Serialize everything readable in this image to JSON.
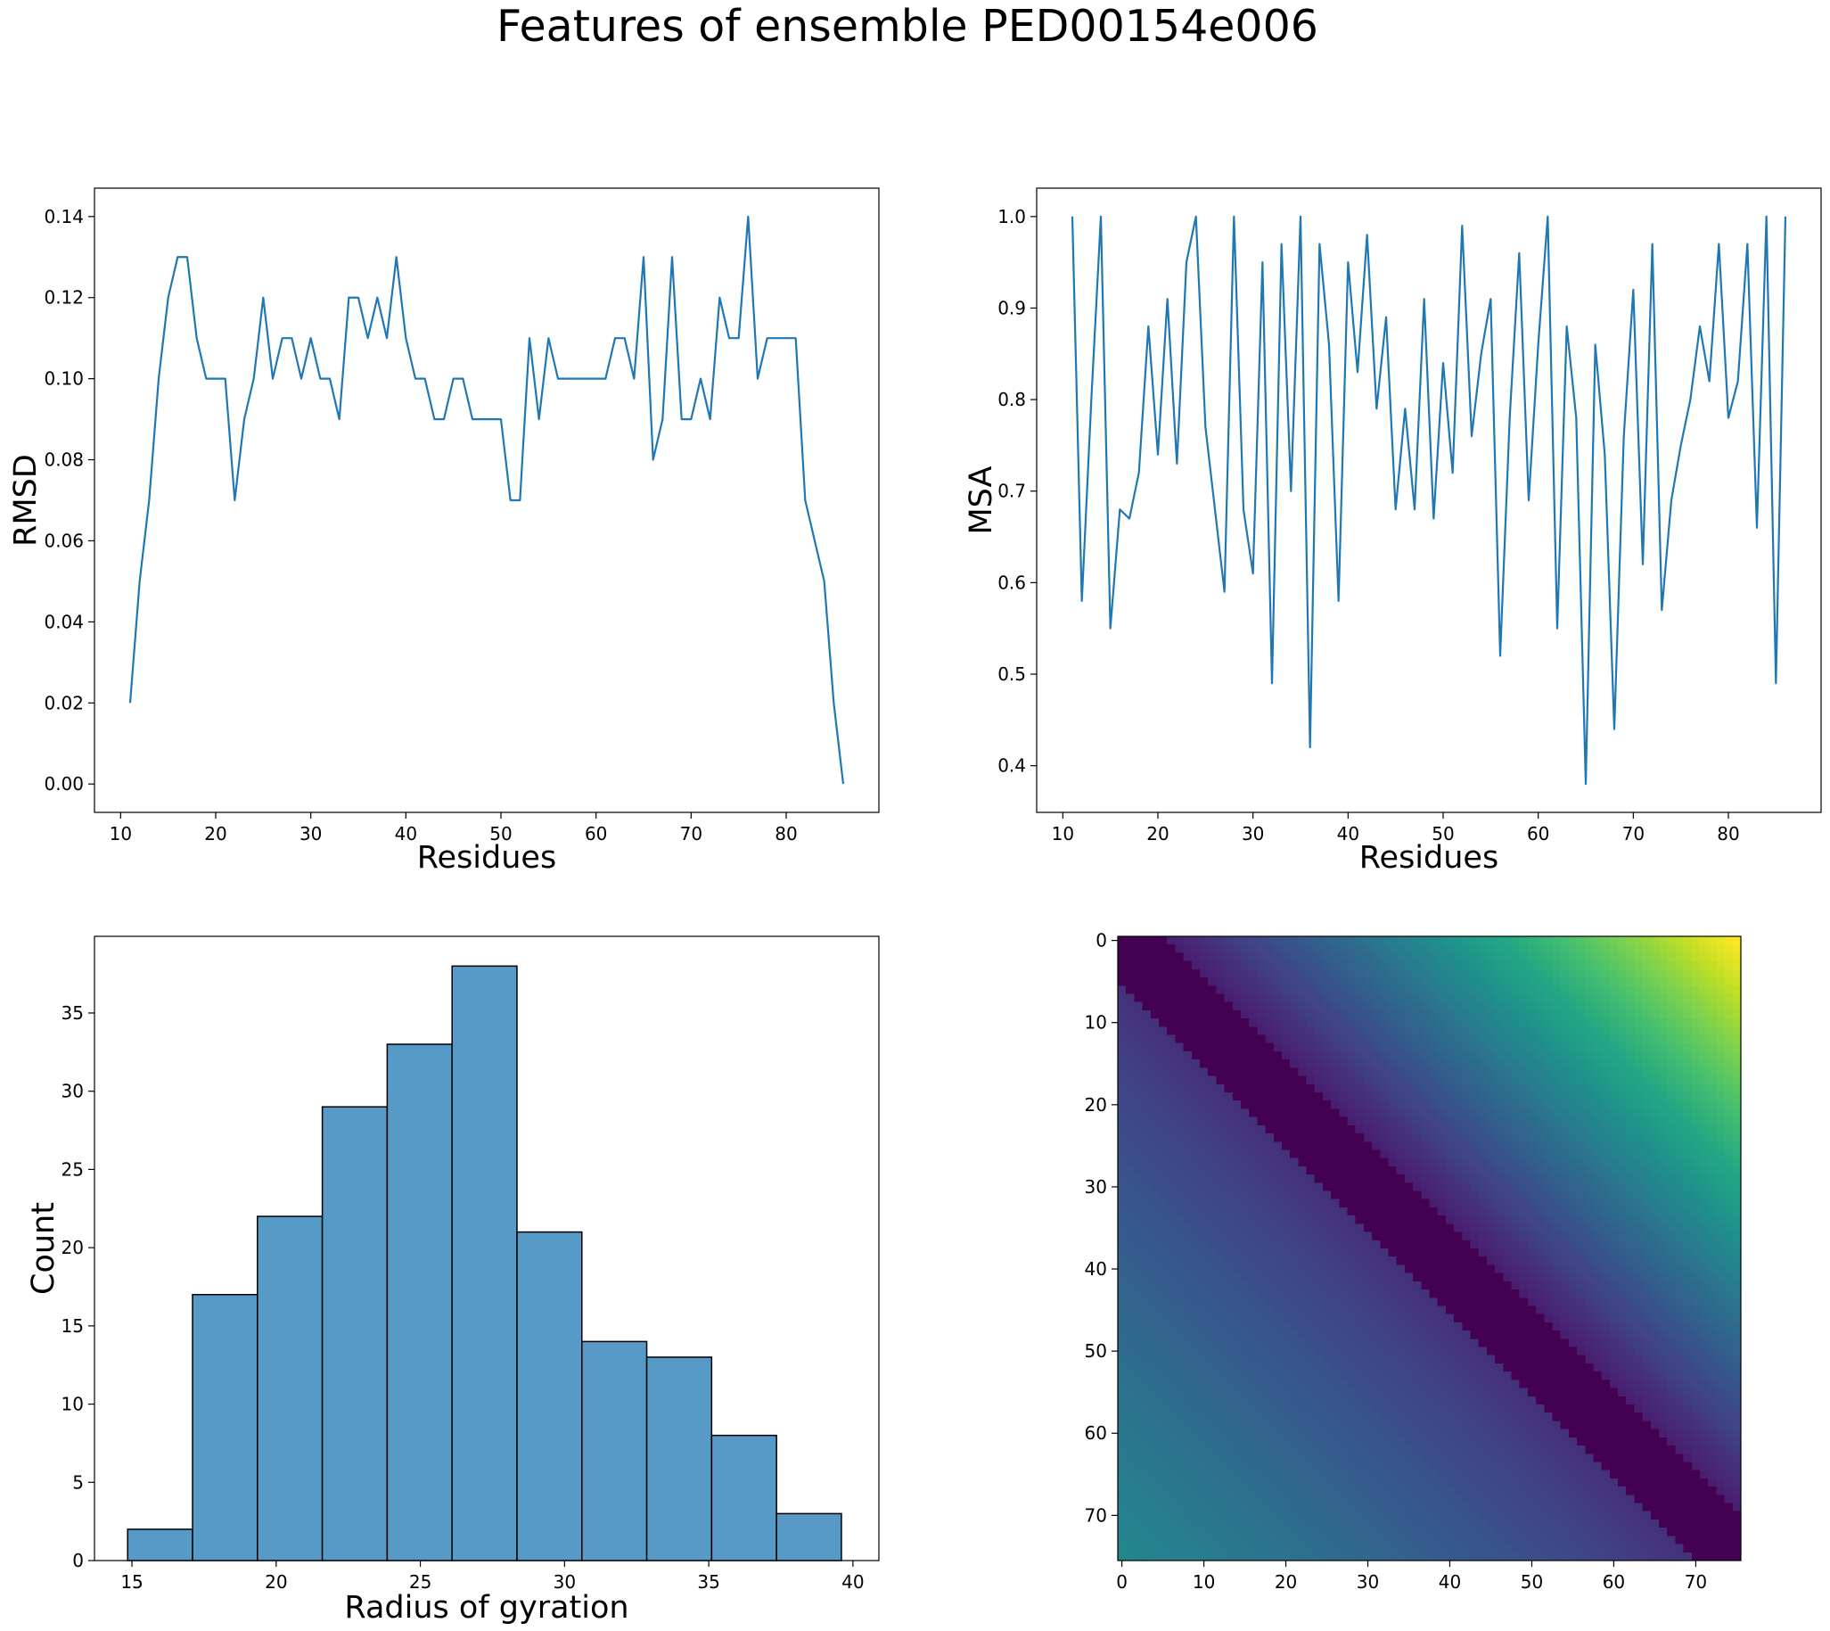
{
  "figure": {
    "title": "Features of ensemble PED00154e006",
    "title_color": "#000000"
  },
  "colors": {
    "line": "#1f77b4",
    "bar_fill": "#5799c7",
    "bar_edge": "#000000",
    "axis": "#000000"
  },
  "chart_data": [
    {
      "type": "line",
      "xlabel": "Residues",
      "ylabel": "RMSD",
      "xlim": [
        7.25,
        89.75
      ],
      "ylim": [
        -0.007,
        0.147
      ],
      "xticks": [
        10,
        20,
        30,
        40,
        50,
        60,
        70,
        80
      ],
      "yticks": [
        0.0,
        0.02,
        0.04,
        0.06,
        0.08,
        0.1,
        0.12,
        0.14
      ],
      "ytick_labels": [
        "0.00",
        "0.02",
        "0.04",
        "0.06",
        "0.08",
        "0.10",
        "0.12",
        "0.14"
      ],
      "grid": false,
      "series": [
        {
          "x": [
            11,
            12,
            13,
            14,
            15,
            16,
            17,
            18,
            19,
            20,
            21,
            22,
            23,
            24,
            25,
            26,
            27,
            28,
            29,
            30,
            31,
            32,
            33,
            34,
            35,
            36,
            37,
            38,
            39,
            40,
            41,
            42,
            43,
            44,
            45,
            46,
            47,
            48,
            49,
            50,
            51,
            52,
            53,
            54,
            55,
            56,
            57,
            58,
            59,
            60,
            61,
            62,
            63,
            64,
            65,
            66,
            67,
            68,
            69,
            70,
            71,
            72,
            73,
            74,
            75,
            76,
            77,
            78,
            79,
            80,
            81,
            82,
            83,
            84,
            85,
            86
          ],
          "values": [
            0.02,
            0.05,
            0.07,
            0.1,
            0.12,
            0.13,
            0.13,
            0.11,
            0.1,
            0.1,
            0.1,
            0.07,
            0.09,
            0.1,
            0.12,
            0.1,
            0.11,
            0.11,
            0.1,
            0.11,
            0.1,
            0.1,
            0.09,
            0.12,
            0.12,
            0.11,
            0.12,
            0.11,
            0.13,
            0.11,
            0.1,
            0.1,
            0.09,
            0.09,
            0.1,
            0.1,
            0.09,
            0.09,
            0.09,
            0.09,
            0.07,
            0.07,
            0.11,
            0.09,
            0.11,
            0.1,
            0.1,
            0.1,
            0.1,
            0.1,
            0.1,
            0.11,
            0.11,
            0.1,
            0.13,
            0.08,
            0.09,
            0.13,
            0.09,
            0.09,
            0.1,
            0.09,
            0.12,
            0.11,
            0.11,
            0.14,
            0.1,
            0.11,
            0.11,
            0.11,
            0.11,
            0.07,
            0.06,
            0.05,
            0.02,
            0.0
          ]
        }
      ]
    },
    {
      "type": "line",
      "xlabel": "Residues",
      "ylabel": "MSA",
      "xlim": [
        7.25,
        89.75
      ],
      "ylim": [
        0.349,
        1.031
      ],
      "xticks": [
        10,
        20,
        30,
        40,
        50,
        60,
        70,
        80
      ],
      "yticks": [
        0.4,
        0.5,
        0.6,
        0.7,
        0.8,
        0.9,
        1.0
      ],
      "ytick_labels": [
        "0.4",
        "0.5",
        "0.6",
        "0.7",
        "0.8",
        "0.9",
        "1.0"
      ],
      "grid": false,
      "series": [
        {
          "x": [
            11,
            12,
            13,
            14,
            15,
            16,
            17,
            18,
            19,
            20,
            21,
            22,
            23,
            24,
            25,
            26,
            27,
            28,
            29,
            30,
            31,
            32,
            33,
            34,
            35,
            36,
            37,
            38,
            39,
            40,
            41,
            42,
            43,
            44,
            45,
            46,
            47,
            48,
            49,
            50,
            51,
            52,
            53,
            54,
            55,
            56,
            57,
            58,
            59,
            60,
            61,
            62,
            63,
            64,
            65,
            66,
            67,
            68,
            69,
            70,
            71,
            72,
            73,
            74,
            75,
            76,
            77,
            78,
            79,
            80,
            81,
            82,
            83,
            84,
            85,
            86
          ],
          "values": [
            1.0,
            0.58,
            0.8,
            1.0,
            0.55,
            0.68,
            0.67,
            0.72,
            0.88,
            0.74,
            0.91,
            0.73,
            0.95,
            1.0,
            0.77,
            0.68,
            0.59,
            1.0,
            0.68,
            0.61,
            0.95,
            0.49,
            0.97,
            0.7,
            1.0,
            0.42,
            0.97,
            0.86,
            0.58,
            0.95,
            0.83,
            0.98,
            0.79,
            0.89,
            0.68,
            0.79,
            0.68,
            0.91,
            0.67,
            0.84,
            0.72,
            0.99,
            0.76,
            0.85,
            0.91,
            0.52,
            0.78,
            0.96,
            0.69,
            0.86,
            1.0,
            0.55,
            0.88,
            0.78,
            0.38,
            0.86,
            0.74,
            0.44,
            0.76,
            0.92,
            0.62,
            0.97,
            0.57,
            0.69,
            0.75,
            0.8,
            0.88,
            0.82,
            0.97,
            0.78,
            0.82,
            0.97,
            0.66,
            1.0,
            0.49,
            1.0
          ]
        }
      ]
    },
    {
      "type": "bar",
      "xlabel": "Radius of gyration",
      "ylabel": "Count",
      "xlim": [
        13.7,
        40.9
      ],
      "ylim": [
        0,
        39.9
      ],
      "xticks": [
        15,
        20,
        25,
        30,
        35,
        40
      ],
      "yticks": [
        0,
        5,
        10,
        15,
        20,
        25,
        30,
        35
      ],
      "grid": false,
      "bin_edges": [
        14.85,
        17.1,
        19.35,
        21.6,
        23.85,
        26.1,
        28.35,
        30.6,
        32.85,
        35.1,
        37.35,
        39.6
      ],
      "values": [
        2,
        17,
        22,
        29,
        33,
        38,
        21,
        14,
        13,
        8,
        3
      ]
    },
    {
      "type": "heatmap",
      "colormap": "viridis",
      "size": 76,
      "xticks": [
        0,
        10,
        20,
        30,
        40,
        50,
        60,
        70
      ],
      "yticks": [
        0,
        10,
        20,
        30,
        40,
        50,
        60,
        70
      ],
      "grid": false
    }
  ]
}
